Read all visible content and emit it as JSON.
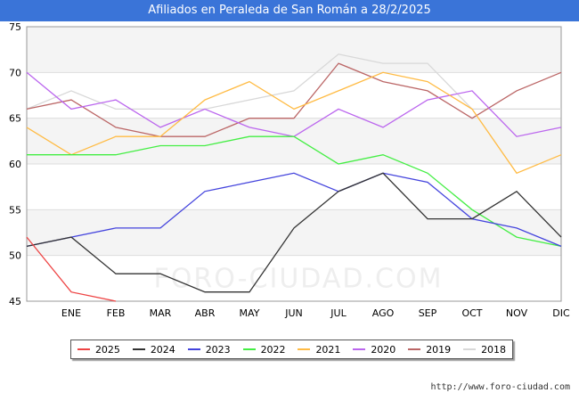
{
  "title": "Afiliados en Peraleda de San Román a 28/2/2025",
  "source": "http://www.foro-ciudad.com",
  "watermark": "FORO-CIUDAD.COM",
  "chart_data": {
    "type": "line",
    "title": "Afiliados en Peraleda de San Román a 28/2/2025",
    "categories": [
      "",
      "ENE",
      "FEB",
      "MAR",
      "ABR",
      "MAY",
      "JUN",
      "JUL",
      "AGO",
      "SEP",
      "OCT",
      "NOV",
      "DIC"
    ],
    "ylim": [
      45,
      75
    ],
    "yticks": [
      45,
      50,
      55,
      60,
      65,
      70,
      75
    ],
    "grid": true,
    "legend_position": "bottom",
    "series": [
      {
        "name": "2025",
        "color": "#ee4444",
        "values": [
          52,
          46,
          45,
          null,
          null,
          null,
          null,
          null,
          null,
          null,
          null,
          null,
          null
        ]
      },
      {
        "name": "2024",
        "color": "#333333",
        "values": [
          51,
          52,
          48,
          48,
          46,
          46,
          53,
          57,
          59,
          54,
          54,
          57,
          52
        ]
      },
      {
        "name": "2023",
        "color": "#4444dd",
        "values": [
          51,
          52,
          53,
          53,
          57,
          58,
          59,
          57,
          59,
          58,
          54,
          53,
          51
        ]
      },
      {
        "name": "2022",
        "color": "#44ee44",
        "values": [
          61,
          61,
          61,
          62,
          62,
          63,
          63,
          60,
          61,
          59,
          55,
          52,
          51
        ]
      },
      {
        "name": "2021",
        "color": "#ffbb44",
        "values": [
          64,
          61,
          63,
          63,
          67,
          69,
          66,
          68,
          70,
          69,
          66,
          59,
          61
        ]
      },
      {
        "name": "2020",
        "color": "#bb66ee",
        "values": [
          70,
          66,
          67,
          64,
          66,
          64,
          63,
          66,
          64,
          67,
          68,
          63,
          64
        ]
      },
      {
        "name": "2019",
        "color": "#bb6666",
        "values": [
          66,
          67,
          64,
          63,
          63,
          65,
          65,
          71,
          69,
          68,
          65,
          68,
          70
        ]
      },
      {
        "name": "2018",
        "color": "#d8d8d8",
        "values": [
          66,
          68,
          66,
          66,
          66,
          67,
          68,
          72,
          71,
          71,
          66,
          66,
          66
        ]
      }
    ]
  }
}
